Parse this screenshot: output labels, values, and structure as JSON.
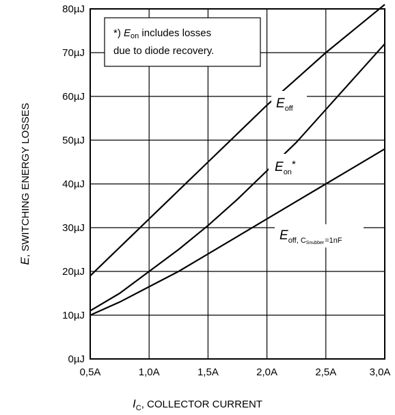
{
  "chart_data": {
    "type": "line",
    "xlabel_prefix": "I",
    "xlabel_sub": "C",
    "xlabel_rest": ", COLLECTOR CURRENT",
    "ylabel_prefix": "E",
    "ylabel_rest": ", SWITCHING ENERGY LOSSES",
    "x_ticks": [
      0.5,
      1.0,
      1.5,
      2.0,
      2.5,
      3.0
    ],
    "x_tick_labels": [
      "0,5A",
      "1,0A",
      "1,5A",
      "2,0A",
      "2,5A",
      "3,0A"
    ],
    "y_ticks": [
      0,
      10,
      20,
      30,
      40,
      50,
      60,
      70,
      80
    ],
    "y_tick_labels": [
      "0µJ",
      "10µJ",
      "20µJ",
      "30µJ",
      "40µJ",
      "50µJ",
      "60µJ",
      "70µJ",
      "80µJ"
    ],
    "xlim": [
      0.5,
      3.0
    ],
    "ylim": [
      0,
      80
    ],
    "grid": true,
    "series": [
      {
        "name": "E_off",
        "x": [
          0.5,
          0.75,
          1.0,
          1.25,
          1.5,
          1.75,
          2.0,
          2.25,
          2.5,
          2.75,
          3.0
        ],
        "values": [
          19,
          25.5,
          32,
          38.5,
          45,
          51.5,
          58,
          64,
          70,
          75.5,
          81
        ]
      },
      {
        "name": "E_on*",
        "x": [
          0.5,
          0.75,
          1.0,
          1.25,
          1.5,
          1.75,
          2.0,
          2.25,
          2.5,
          2.75,
          3.0
        ],
        "values": [
          11,
          15,
          20,
          25,
          30.5,
          36.5,
          43,
          49.5,
          57,
          64.5,
          72
        ]
      },
      {
        "name": "E_off, Csnubber=1nF",
        "x": [
          0.5,
          0.75,
          1.0,
          1.25,
          1.5,
          1.75,
          2.0,
          2.25,
          2.5,
          2.75,
          3.0
        ],
        "values": [
          10,
          13,
          16.5,
          20,
          24,
          28,
          32,
          36,
          40,
          44,
          48
        ]
      }
    ],
    "labels": {
      "eoff_main": "E",
      "eoff_sub": "off",
      "eon_main": "E",
      "eon_sub": "on",
      "eon_star": "*",
      "snub_main": "E",
      "snub_sub": "off, C",
      "snub_subsub": "Snubber",
      "snub_tail": "=1nF"
    },
    "annotation": {
      "line1_prefix": "*) ",
      "line1_e": "E",
      "line1_sub": "on",
      "line1_rest": " includes losses",
      "line2": "due to diode recovery."
    }
  }
}
